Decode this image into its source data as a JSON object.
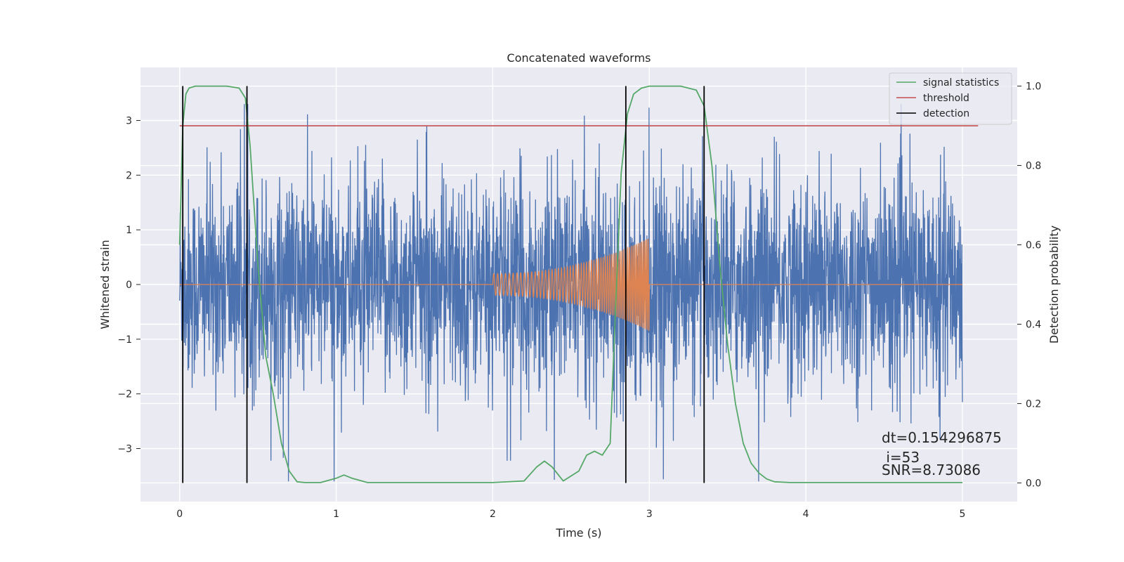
{
  "chart_data": {
    "type": "line",
    "title": "Concatenated waveforms",
    "xlabel": "Time (s)",
    "ylabel": "Whitened strain",
    "y2label": "Detection probability",
    "xlim": [
      -0.25,
      5.35
    ],
    "ylim": [
      -3.97,
      3.97
    ],
    "y2lim": [
      -0.047,
      1.047
    ],
    "x_ticks": [
      0,
      1,
      2,
      3,
      4,
      5
    ],
    "y_ticks": [
      -3,
      -2,
      -1,
      0,
      1,
      2,
      3
    ],
    "y2_ticks": [
      0.0,
      0.2,
      0.4,
      0.6,
      0.8,
      1.0
    ],
    "x_tick_labels": [
      "0",
      "1",
      "2",
      "3",
      "4",
      "5"
    ],
    "y_tick_labels": [
      "−3",
      "−2",
      "−1",
      "0",
      "1",
      "2",
      "3"
    ],
    "y2_tick_labels": [
      "0.0",
      "0.2",
      "0.4",
      "0.6",
      "0.8",
      "1.0"
    ],
    "grid": true,
    "legend_position": "top-right",
    "series": [
      {
        "name": "",
        "axis": "left",
        "color": "#4c72b0",
        "kind": "noise",
        "x_range": [
          0,
          5
        ],
        "approx_amplitude": 1.0,
        "peak_max": 3.3,
        "peak_min": -3.6
      },
      {
        "name": "",
        "axis": "left",
        "color": "#dd8452",
        "kind": "chirp",
        "flat_range": [
          0,
          5
        ],
        "chirp_range": [
          2.0,
          3.0
        ],
        "amplitude_start": 0.2,
        "amplitude_end": 0.85
      },
      {
        "name": "signal statistics",
        "axis": "right",
        "color": "#55a868",
        "x": [
          0,
          0.01,
          0.02,
          0.04,
          0.06,
          0.1,
          0.2,
          0.3,
          0.38,
          0.42,
          0.45,
          0.5,
          0.55,
          0.6,
          0.65,
          0.7,
          0.75,
          0.8,
          0.9,
          1.0,
          1.05,
          1.1,
          1.2,
          1.5,
          2.0,
          2.2,
          2.28,
          2.33,
          2.38,
          2.45,
          2.55,
          2.6,
          2.65,
          2.7,
          2.75,
          2.78,
          2.82,
          2.86,
          2.9,
          2.95,
          3.0,
          3.2,
          3.3,
          3.35,
          3.4,
          3.45,
          3.5,
          3.55,
          3.6,
          3.65,
          3.7,
          3.75,
          3.8,
          3.9,
          4.5,
          5.0
        ],
        "y": [
          0.6,
          0.75,
          0.9,
          0.98,
          0.995,
          1.0,
          1.0,
          1.0,
          0.995,
          0.97,
          0.85,
          0.55,
          0.32,
          0.22,
          0.1,
          0.03,
          0.003,
          0.001,
          0.001,
          0.012,
          0.02,
          0.012,
          0.001,
          0.001,
          0.001,
          0.005,
          0.04,
          0.055,
          0.04,
          0.005,
          0.03,
          0.07,
          0.08,
          0.07,
          0.1,
          0.4,
          0.78,
          0.93,
          0.98,
          0.995,
          1.0,
          1.0,
          0.99,
          0.95,
          0.8,
          0.55,
          0.35,
          0.2,
          0.1,
          0.05,
          0.025,
          0.01,
          0.003,
          0.001,
          0.001,
          0.001
        ]
      },
      {
        "name": "threshold",
        "axis": "right",
        "color": "#c44e52",
        "x": [
          0,
          5.1
        ],
        "y": [
          0.9,
          0.9
        ]
      },
      {
        "name": "detection",
        "axis": "right",
        "color": "#000000",
        "kind": "vlines",
        "x": [
          0.02,
          0.43,
          2.85,
          3.35
        ],
        "ymin": 0.0,
        "ymax": 1.0
      }
    ],
    "annotations": [
      "dt=0.154296875",
      " i=53",
      "SNR=8.73086"
    ]
  }
}
